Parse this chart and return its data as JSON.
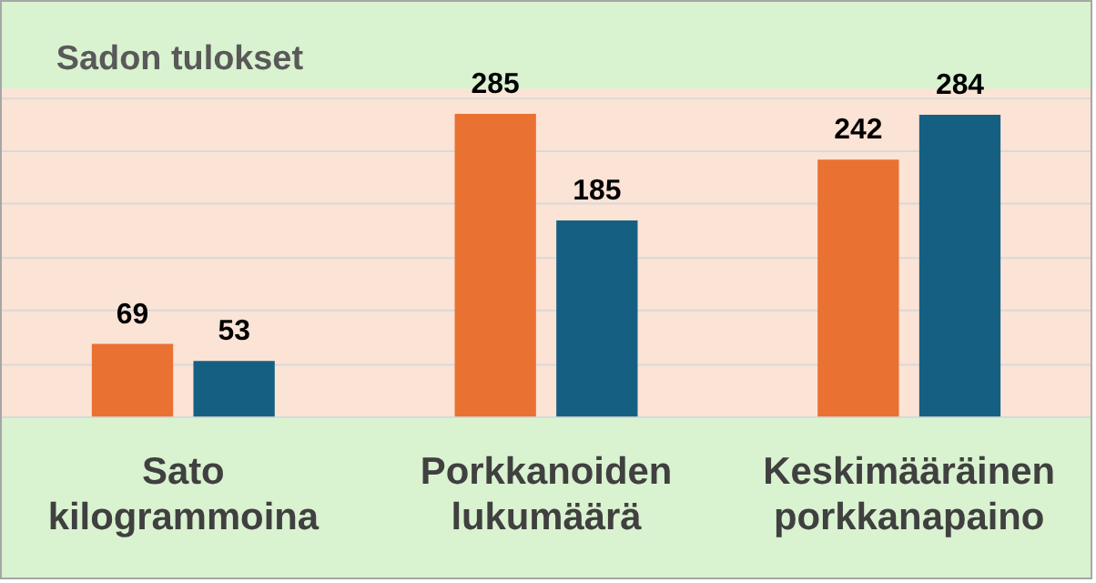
{
  "chart_data": {
    "type": "bar",
    "title": "Sadon tulokset",
    "categories": [
      "Sato kilogrammoina",
      "Porkkanoiden lukumäärä",
      "Keskimääräinen porkkanapaino"
    ],
    "series": [
      {
        "color": "#e97132",
        "values": [
          69,
          285,
          242
        ]
      },
      {
        "color": "#156082",
        "values": [
          53,
          185,
          284
        ]
      }
    ],
    "ylim": [
      0,
      300
    ],
    "yticks": [
      {
        "value": 0,
        "label": null
      },
      {
        "value": 50,
        "label": null
      },
      {
        "value": 100,
        "label": null
      },
      {
        "value": 150,
        "label": null
      },
      {
        "value": 200,
        "label": null
      },
      {
        "value": 250,
        "label": null
      },
      {
        "value": 300,
        "label": null
      }
    ],
    "grid": "y",
    "tick_labels": "x",
    "data_labels": true,
    "legend": false
  }
}
